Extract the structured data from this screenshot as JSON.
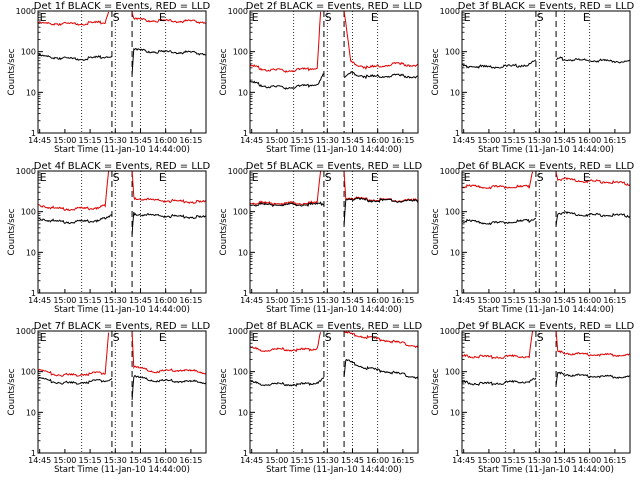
{
  "chart_data": {
    "type": "line",
    "x_tick_labels": [
      "14:45",
      "15:00",
      "15:15",
      "15:30",
      "15:45",
      "16:00",
      "16:15"
    ],
    "x_ticks_minutes_after_start": [
      1,
      16,
      31,
      46,
      61,
      76,
      91
    ],
    "x_range_minutes_after_start": [
      0,
      100
    ],
    "xlabel": "Start Time (11-Jan-10 14:44:00)",
    "ylabel": "Counts/sec",
    "yscale": "log",
    "ylim": [
      1,
      1000
    ],
    "y_tick_labels": [
      "1",
      "10",
      "100",
      "1000"
    ],
    "markers": [
      {
        "label": "E",
        "x": 3,
        "dotted": false
      },
      {
        "label": "S",
        "x": 46.5,
        "dotted": false
      },
      {
        "label": "E",
        "x": 74,
        "dotted": false
      }
    ],
    "dotted_lines_x": [
      26,
      46,
      61,
      76
    ],
    "series_colors": {
      "events": "#000000",
      "lld": "#e00000"
    },
    "panels": [
      {
        "title": "Det 1f BLACK = Events, RED = LLD",
        "gap": [
          44,
          56
        ],
        "dashed": [
          44,
          56
        ],
        "events": [
          [
            0,
            80
          ],
          [
            10,
            72
          ],
          [
            20,
            66
          ],
          [
            30,
            68
          ],
          [
            40,
            74
          ],
          [
            44,
            80
          ],
          [
            56,
            30
          ],
          [
            57,
            110
          ],
          [
            70,
            100
          ],
          [
            85,
            96
          ],
          [
            100,
            90
          ]
        ],
        "lld": [
          [
            0,
            500
          ],
          [
            20,
            480
          ],
          [
            40,
            520
          ],
          [
            42,
            1000
          ],
          [
            56,
            1000
          ],
          [
            57,
            620
          ],
          [
            70,
            580
          ],
          [
            85,
            560
          ],
          [
            100,
            540
          ]
        ]
      },
      {
        "title": "Det 2f BLACK = Events, RED = LLD",
        "gap": [
          44,
          56
        ],
        "dashed": [
          44,
          56
        ],
        "events": [
          [
            0,
            18
          ],
          [
            10,
            14
          ],
          [
            20,
            13
          ],
          [
            30,
            14
          ],
          [
            40,
            16
          ],
          [
            44,
            28
          ],
          [
            56,
            22
          ],
          [
            60,
            30
          ],
          [
            70,
            24
          ],
          [
            85,
            26
          ],
          [
            100,
            24
          ]
        ],
        "lld": [
          [
            0,
            45
          ],
          [
            10,
            36
          ],
          [
            20,
            34
          ],
          [
            30,
            36
          ],
          [
            40,
            40
          ],
          [
            42,
            1000
          ],
          [
            56,
            1000
          ],
          [
            60,
            55
          ],
          [
            70,
            40
          ],
          [
            85,
            50
          ],
          [
            100,
            46
          ]
        ]
      },
      {
        "title": "Det 3f BLACK = Events, RED = LLD",
        "gap": [
          44,
          56
        ],
        "dashed": [
          44,
          56
        ],
        "events": [
          [
            0,
            45
          ],
          [
            15,
            42
          ],
          [
            30,
            44
          ],
          [
            40,
            48
          ],
          [
            44,
            60
          ],
          [
            56,
            60
          ],
          [
            57,
            68
          ],
          [
            70,
            62
          ],
          [
            85,
            60
          ],
          [
            100,
            56
          ]
        ],
        "lld": []
      },
      {
        "title": "Det 4f BLACK = Events, RED = LLD",
        "gap": [
          44,
          56
        ],
        "dashed": [
          44,
          56
        ],
        "events": [
          [
            0,
            70
          ],
          [
            10,
            58
          ],
          [
            20,
            55
          ],
          [
            30,
            58
          ],
          [
            40,
            66
          ],
          [
            44,
            80
          ],
          [
            56,
            26
          ],
          [
            57,
            90
          ],
          [
            70,
            80
          ],
          [
            85,
            76
          ],
          [
            100,
            72
          ]
        ],
        "lld": [
          [
            0,
            150
          ],
          [
            10,
            120
          ],
          [
            20,
            115
          ],
          [
            30,
            120
          ],
          [
            40,
            135
          ],
          [
            42,
            1000
          ],
          [
            56,
            1000
          ],
          [
            57,
            220
          ],
          [
            70,
            190
          ],
          [
            85,
            180
          ],
          [
            100,
            170
          ]
        ]
      },
      {
        "title": "Det 5f BLACK = Events, RED = LLD",
        "gap": [
          44,
          56
        ],
        "dashed": [
          44,
          56
        ],
        "events": [
          [
            0,
            150
          ],
          [
            20,
            148
          ],
          [
            40,
            152
          ],
          [
            44,
            160
          ],
          [
            56,
            50
          ],
          [
            57,
            210
          ],
          [
            70,
            190
          ],
          [
            85,
            185
          ],
          [
            100,
            180
          ]
        ],
        "lld": [
          [
            0,
            165
          ],
          [
            20,
            160
          ],
          [
            40,
            165
          ],
          [
            42,
            1000
          ],
          [
            56,
            1000
          ],
          [
            57,
            220
          ],
          [
            70,
            200
          ],
          [
            85,
            190
          ],
          [
            100,
            190
          ]
        ]
      },
      {
        "title": "Det 6f BLACK = Events, RED = LLD",
        "gap": [
          44,
          56
        ],
        "dashed": [
          44,
          56
        ],
        "events": [
          [
            0,
            60
          ],
          [
            10,
            55
          ],
          [
            20,
            52
          ],
          [
            30,
            56
          ],
          [
            40,
            60
          ],
          [
            44,
            70
          ],
          [
            56,
            50
          ],
          [
            57,
            95
          ],
          [
            70,
            85
          ],
          [
            85,
            82
          ],
          [
            100,
            80
          ]
        ],
        "lld": [
          [
            0,
            420
          ],
          [
            20,
            400
          ],
          [
            40,
            410
          ],
          [
            42,
            1000
          ],
          [
            56,
            1000
          ],
          [
            57,
            650
          ],
          [
            70,
            580
          ],
          [
            85,
            540
          ],
          [
            100,
            480
          ]
        ]
      },
      {
        "title": "Det 7f BLACK = Events, RED = LLD",
        "gap": [
          44,
          56
        ],
        "dashed": [
          44,
          56
        ],
        "events": [
          [
            0,
            70
          ],
          [
            10,
            55
          ],
          [
            20,
            52
          ],
          [
            30,
            56
          ],
          [
            40,
            62
          ],
          [
            44,
            70
          ],
          [
            56,
            22
          ],
          [
            57,
            75
          ],
          [
            70,
            60
          ],
          [
            85,
            58
          ],
          [
            100,
            55
          ]
        ],
        "lld": [
          [
            0,
            110
          ],
          [
            10,
            85
          ],
          [
            20,
            82
          ],
          [
            30,
            88
          ],
          [
            40,
            95
          ],
          [
            42,
            1000
          ],
          [
            56,
            1000
          ],
          [
            57,
            130
          ],
          [
            70,
            100
          ],
          [
            85,
            110
          ],
          [
            100,
            95
          ]
        ]
      },
      {
        "title": "Det 8f BLACK = Events, RED = LLD",
        "gap": [
          44,
          56
        ],
        "dashed": [
          44,
          56
        ],
        "events": [
          [
            0,
            55
          ],
          [
            10,
            48
          ],
          [
            20,
            50
          ],
          [
            30,
            48
          ],
          [
            40,
            55
          ],
          [
            44,
            70
          ],
          [
            56,
            70
          ],
          [
            57,
            190
          ],
          [
            70,
            120
          ],
          [
            85,
            95
          ],
          [
            100,
            72
          ]
        ],
        "lld": [
          [
            0,
            380
          ],
          [
            10,
            330
          ],
          [
            20,
            360
          ],
          [
            30,
            340
          ],
          [
            40,
            380
          ],
          [
            42,
            1000
          ],
          [
            56,
            1000
          ],
          [
            57,
            900
          ],
          [
            70,
            700
          ],
          [
            85,
            550
          ],
          [
            100,
            420
          ]
        ]
      },
      {
        "title": "Det 9f BLACK = Events, RED = LLD",
        "gap": [
          44,
          56
        ],
        "dashed": [
          44,
          56
        ],
        "events": [
          [
            0,
            55
          ],
          [
            10,
            50
          ],
          [
            20,
            52
          ],
          [
            30,
            55
          ],
          [
            40,
            58
          ],
          [
            44,
            65
          ],
          [
            56,
            45
          ],
          [
            57,
            90
          ],
          [
            70,
            80
          ],
          [
            85,
            76
          ],
          [
            100,
            74
          ]
        ],
        "lld": [
          [
            0,
            240
          ],
          [
            20,
            230
          ],
          [
            40,
            240
          ],
          [
            42,
            1000
          ],
          [
            56,
            1000
          ],
          [
            57,
            300
          ],
          [
            70,
            270
          ],
          [
            85,
            260
          ],
          [
            100,
            255
          ]
        ]
      }
    ]
  }
}
